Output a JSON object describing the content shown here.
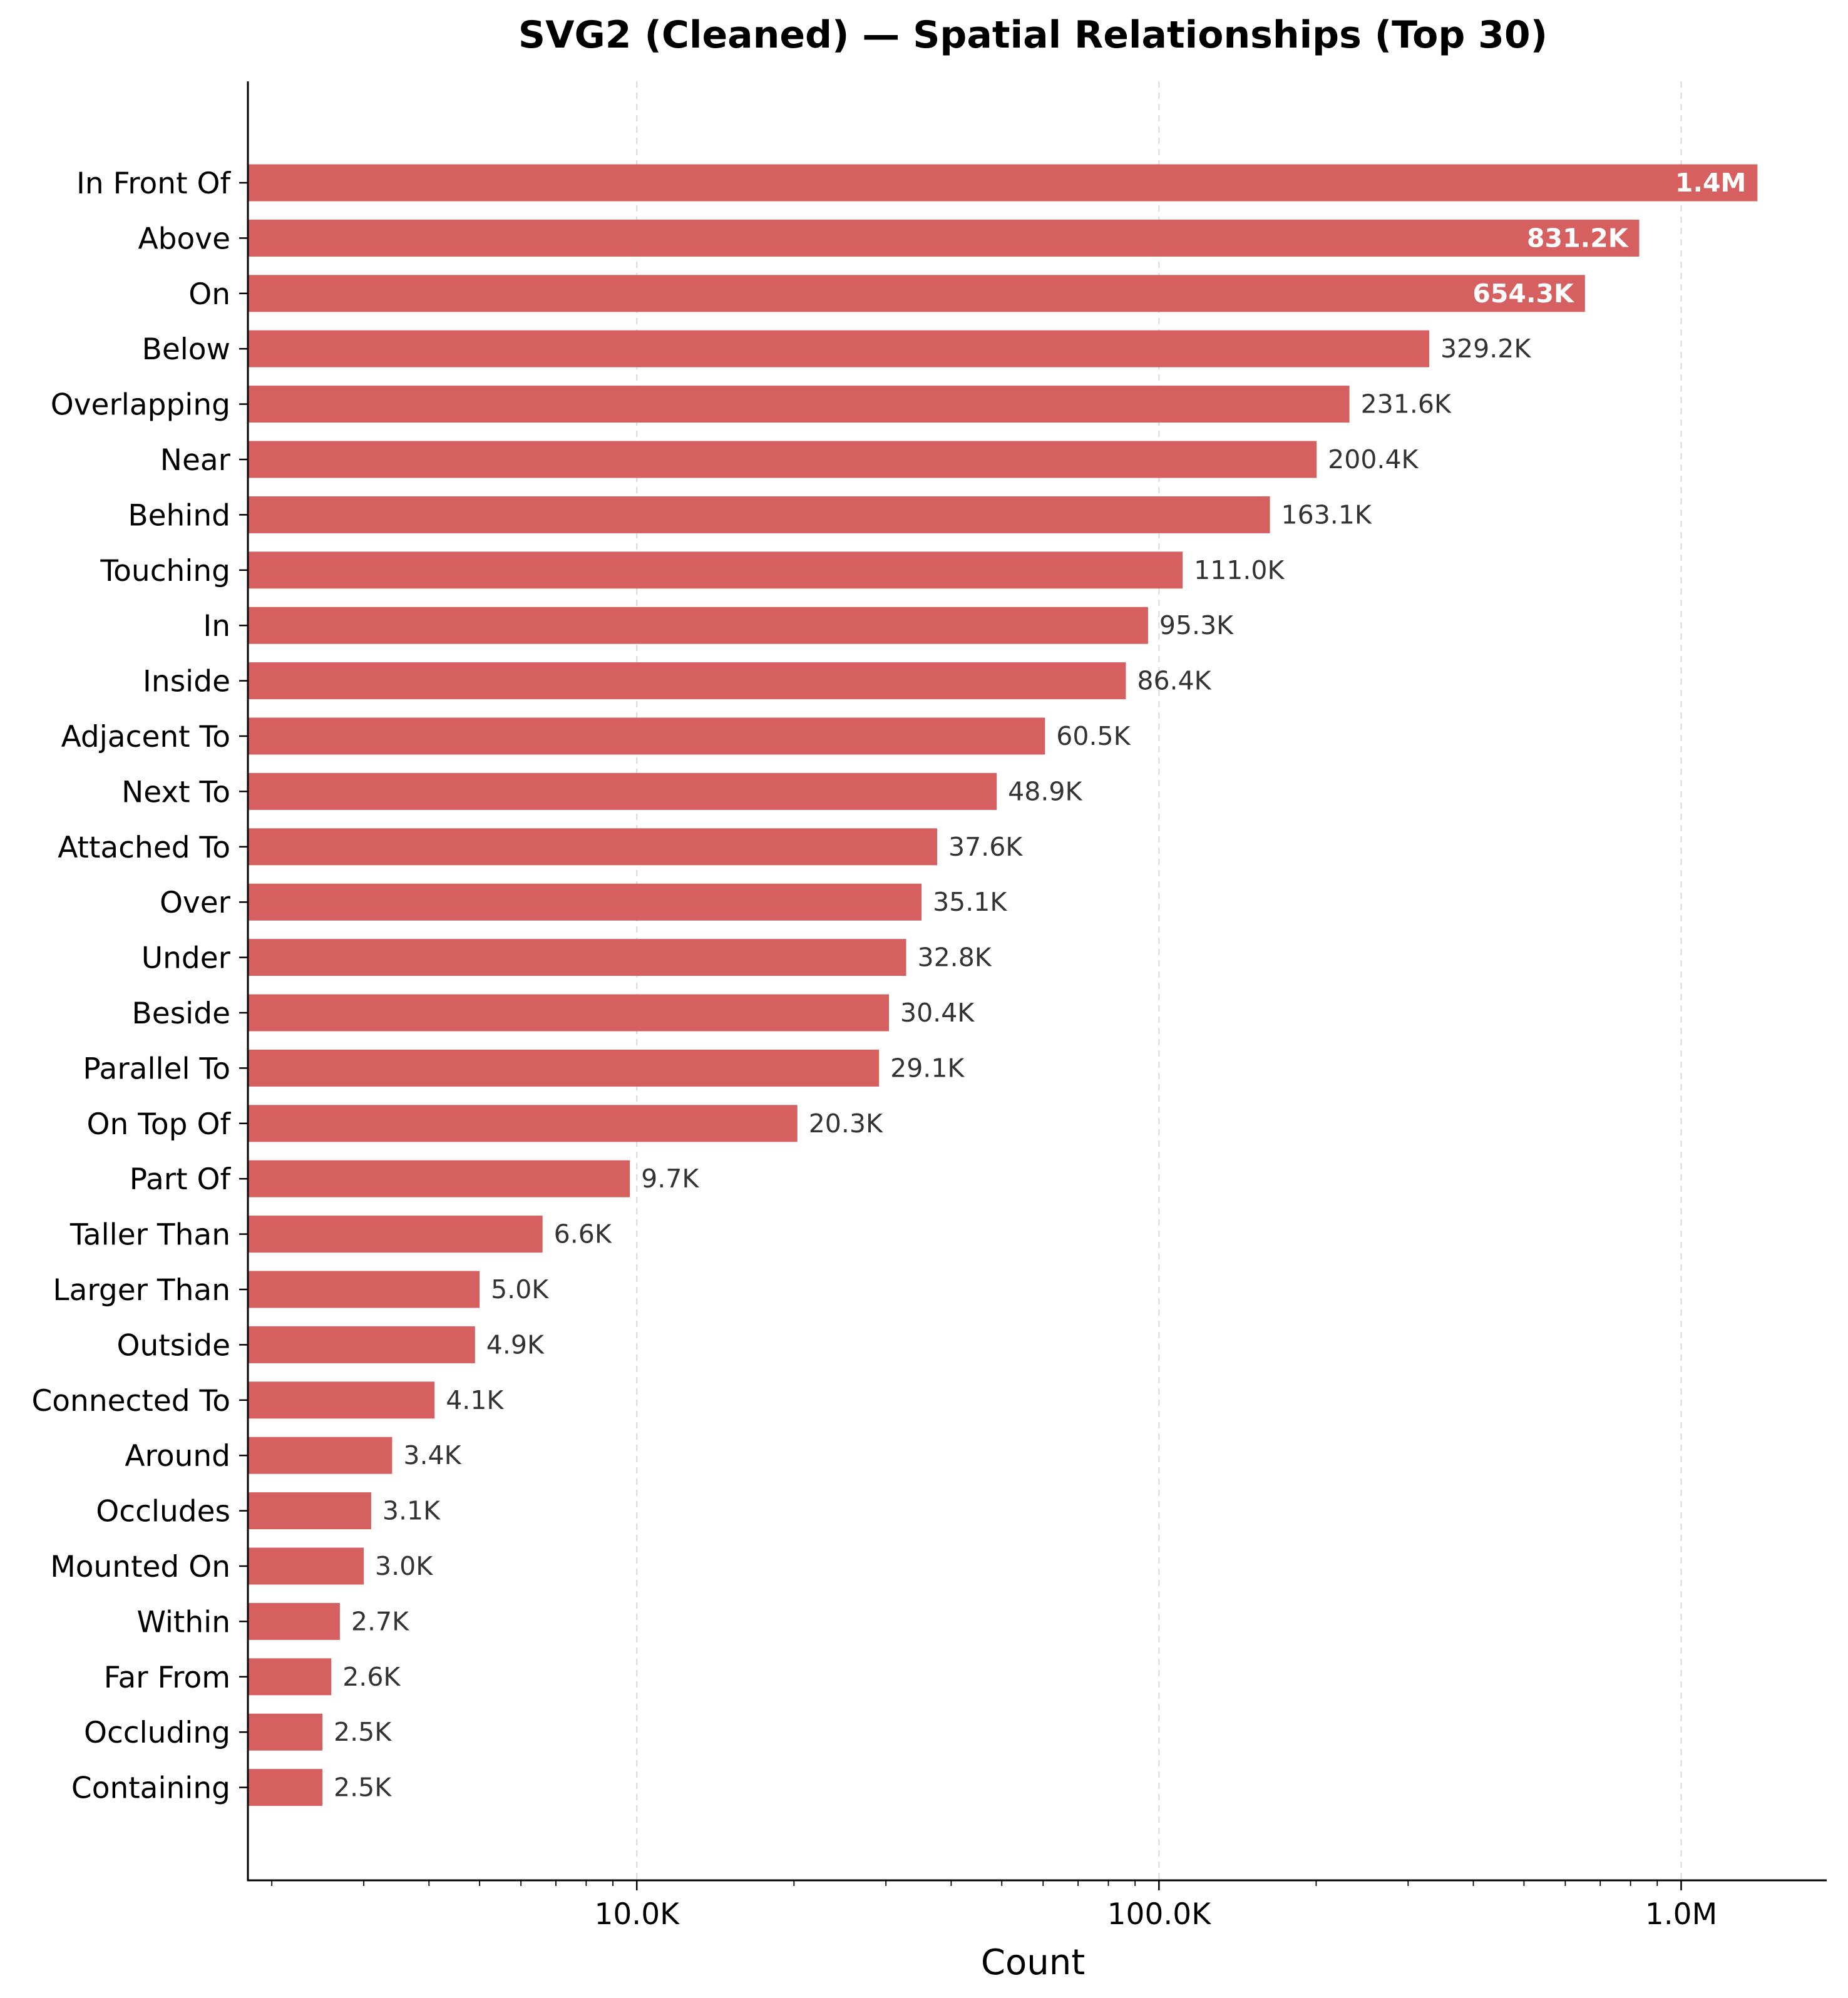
{
  "chart_data": {
    "type": "bar",
    "orientation": "horizontal",
    "title": "SVG2 (Cleaned) — Spatial Relationships (Top 30)",
    "xlabel": "Count",
    "ylabel": "",
    "x_scale": "log",
    "xlim": [
      1800,
      1900000
    ],
    "xticks": [
      10000,
      100000,
      1000000
    ],
    "xtick_labels": [
      "10.0K",
      "100.0K",
      "1.0M"
    ],
    "grid": "x-major dashed",
    "bar_color": "#d65f5f",
    "categories": [
      "In Front Of",
      "Above",
      "On",
      "Below",
      "Overlapping",
      "Near",
      "Behind",
      "Touching",
      "In",
      "Inside",
      "Adjacent To",
      "Next To",
      "Attached To",
      "Over",
      "Under",
      "Beside",
      "Parallel To",
      "On Top Of",
      "Part Of",
      "Taller Than",
      "Larger Than",
      "Outside",
      "Connected To",
      "Around",
      "Occludes",
      "Mounted On",
      "Within",
      "Far From",
      "Occluding",
      "Containing"
    ],
    "values": [
      1400000,
      831200,
      654300,
      329200,
      231600,
      200400,
      163100,
      111000,
      95300,
      86400,
      60500,
      48900,
      37600,
      35100,
      32800,
      30400,
      29100,
      20300,
      9700,
      6600,
      5000,
      4900,
      4100,
      3400,
      3100,
      3000,
      2700,
      2600,
      2500,
      2500
    ],
    "value_labels": [
      "1.4M",
      "831.2K",
      "654.3K",
      "329.2K",
      "231.6K",
      "200.4K",
      "163.1K",
      "111.0K",
      "95.3K",
      "86.4K",
      "60.5K",
      "48.9K",
      "37.6K",
      "35.1K",
      "32.8K",
      "30.4K",
      "29.1K",
      "20.3K",
      "9.7K",
      "6.6K",
      "5.0K",
      "4.9K",
      "4.1K",
      "3.4K",
      "3.1K",
      "3.0K",
      "2.7K",
      "2.6K",
      "2.5K",
      "2.5K"
    ],
    "labels_inside_top_n": 3
  }
}
